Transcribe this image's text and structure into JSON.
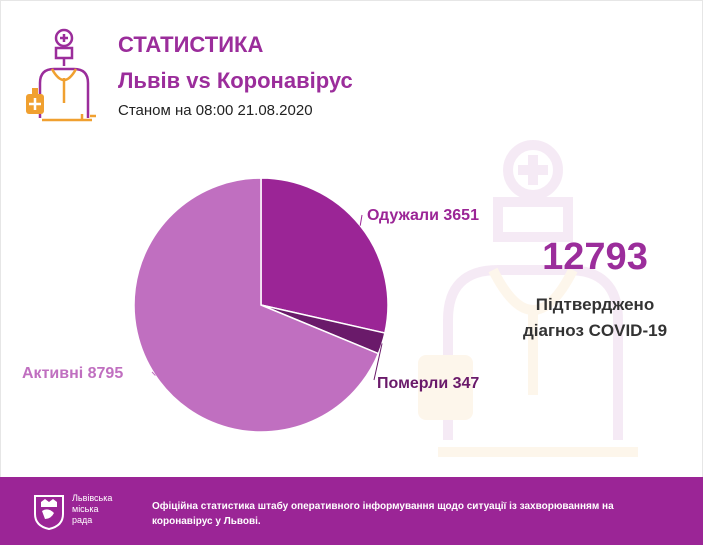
{
  "header": {
    "title": "СТАТИСТИКА",
    "subtitle": "Львів vs Коронавірус",
    "date": "Станом на 08:00 21.08.2020"
  },
  "summary": {
    "total": "12793",
    "label_line1": "Підтверджено",
    "label_line2": "діагноз COVID-19"
  },
  "chart_data": {
    "type": "pie",
    "title": "",
    "slices": [
      {
        "label": "Одужали 3651",
        "value": 3651,
        "color": "#9b2596"
      },
      {
        "label": "Померли 347",
        "value": 347,
        "color": "#6a1a6a"
      },
      {
        "label": "Активні 8795",
        "value": 8795,
        "color": "#c06fc0"
      }
    ]
  },
  "footer": {
    "city_line1": "Львівська",
    "city_line2": "міська",
    "city_line3": "рада",
    "text": "Офіційна статистика штабу оперативного інформування щодо ситуації із захворюванням на коронавірус у Львові."
  },
  "colors": {
    "accent": "#9b2d9b",
    "footer_bg": "#9b2596",
    "logo_orange": "#f0a030"
  }
}
